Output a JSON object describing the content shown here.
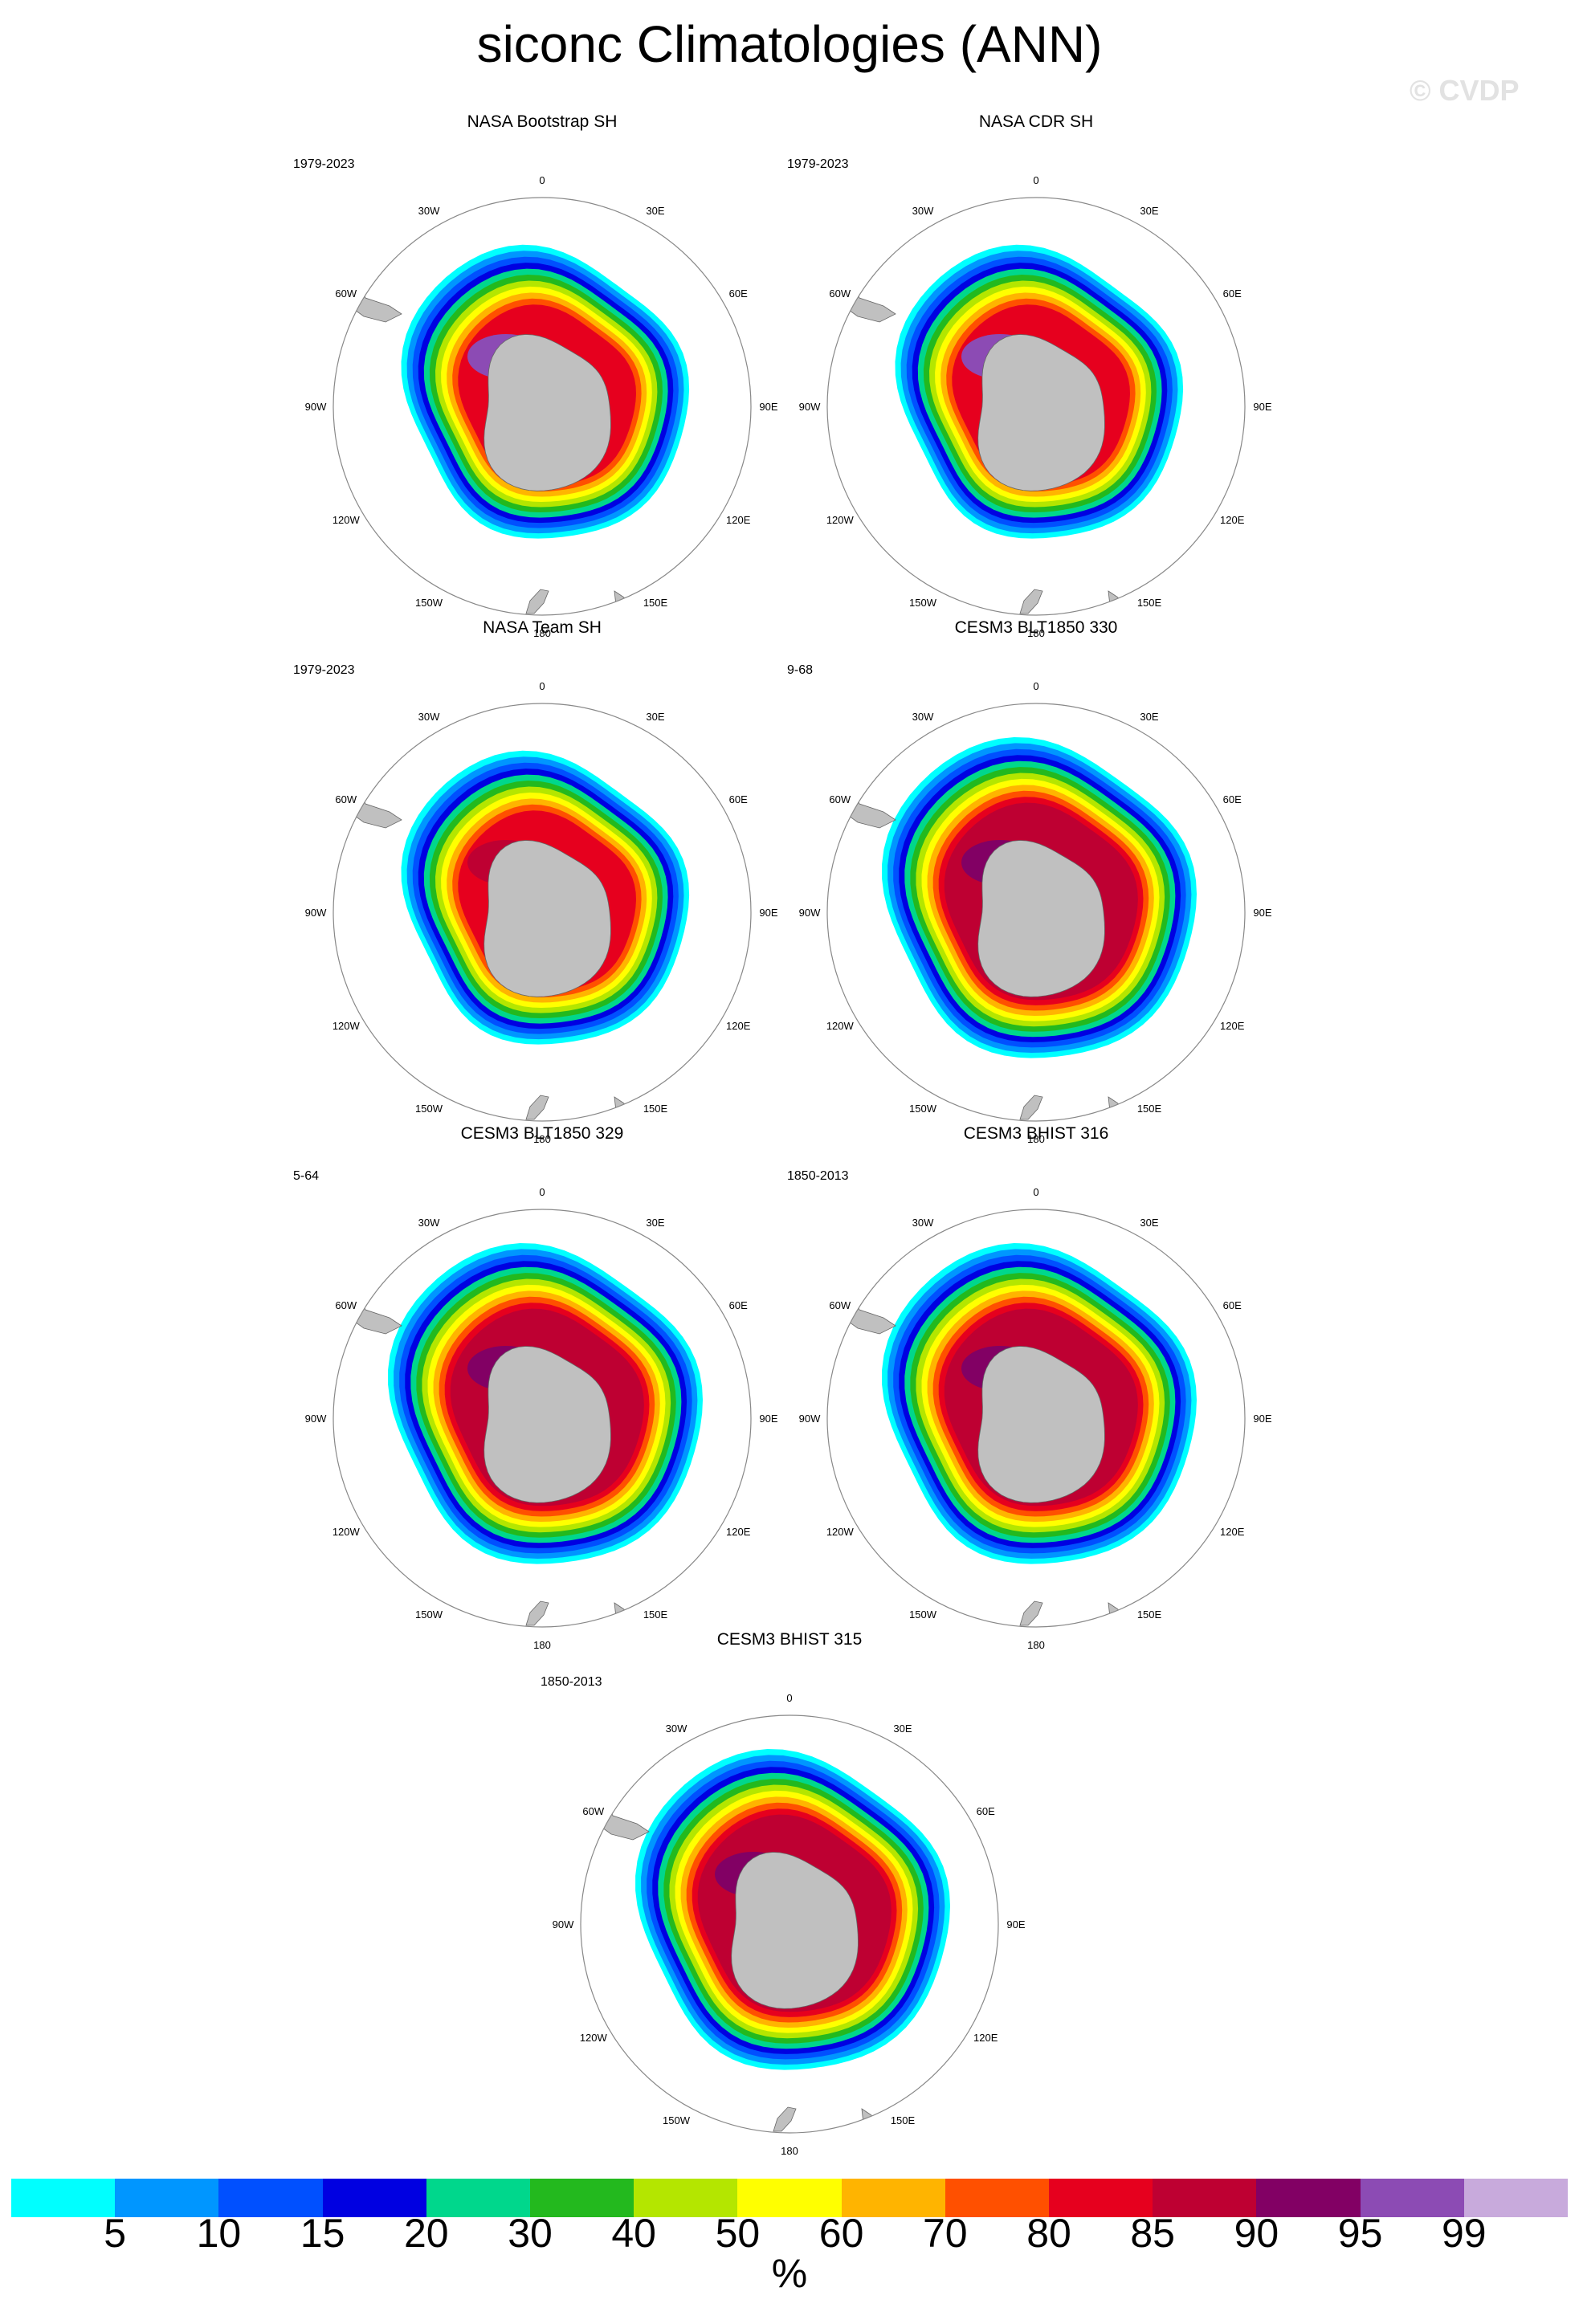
{
  "figure": {
    "title": "siconc Climatologies (ANN)",
    "watermark": "© CVDP"
  },
  "panels": [
    {
      "title": "NASA Bootstrap SH",
      "period": "1979-2023",
      "style": "obs"
    },
    {
      "title": "NASA CDR SH",
      "period": "1979-2023",
      "style": "obs"
    },
    {
      "title": "NASA Team SH",
      "period": "1979-2023",
      "style": "team"
    },
    {
      "title": "CESM3 BLT1850 330",
      "period": "9-68",
      "style": "model"
    },
    {
      "title": "CESM3 BLT1850 329",
      "period": "5-64",
      "style": "model"
    },
    {
      "title": "CESM3 BHIST 316",
      "period": "1850-2013",
      "style": "model"
    },
    {
      "title": "CESM3 BHIST 315",
      "period": "1850-2013",
      "style": "model"
    }
  ],
  "map": {
    "projection": "south-polar-stereographic",
    "longitude_labels": [
      "0",
      "30E",
      "60E",
      "90E",
      "120E",
      "150E",
      "180",
      "150W",
      "120W",
      "90W",
      "60W",
      "30W"
    ],
    "land_color": "#c0c0c0"
  },
  "colorbar": {
    "units": "%",
    "tick_labels": [
      "5",
      "10",
      "15",
      "20",
      "30",
      "40",
      "50",
      "60",
      "70",
      "80",
      "85",
      "90",
      "95",
      "99"
    ],
    "colors": [
      "#00ffff",
      "#0096ff",
      "#0050ff",
      "#0000e1",
      "#00d78c",
      "#23b91e",
      "#b4e600",
      "#ffff00",
      "#ffb400",
      "#ff5000",
      "#e6001e",
      "#be0032",
      "#820064",
      "#8c4bb4",
      "#c8aadc"
    ]
  }
}
